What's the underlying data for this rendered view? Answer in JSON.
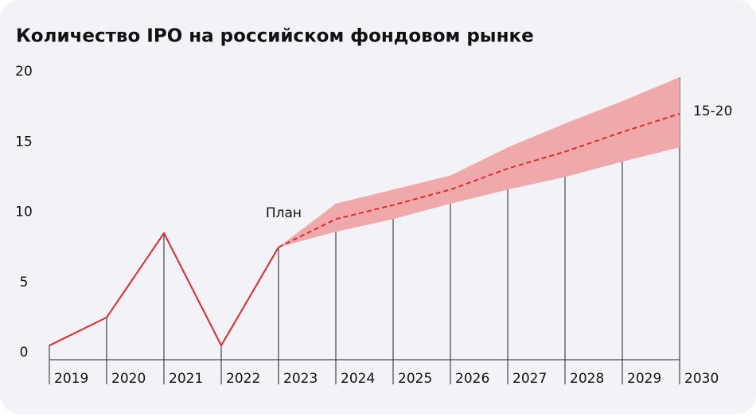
{
  "chart_data": {
    "type": "line",
    "title": "Количество IPO на российском фондовом рынке",
    "categories": [
      "2019",
      "2020",
      "2021",
      "2022",
      "2023",
      "2024",
      "2025",
      "2026",
      "2027",
      "2028",
      "2029",
      "2030"
    ],
    "series": [
      {
        "color": "#e3292b",
        "dashed": false,
        "values": [
          0.5,
          2.5,
          8.5,
          0.5,
          7.5,
          null,
          null,
          null,
          null,
          null,
          null,
          null
        ]
      },
      {
        "color": "#e3292b",
        "dashed": true,
        "values": [
          null,
          null,
          null,
          null,
          7.5,
          9.5,
          10.5,
          11.6,
          13.1,
          14.3,
          15.7,
          17
        ]
      }
    ],
    "band": {
      "color": "#f0a9aa",
      "upper": [
        null,
        null,
        null,
        null,
        7.5,
        10.6,
        11.6,
        12.6,
        14.6,
        16.3,
        17.9,
        19.6
      ],
      "lower": [
        null,
        null,
        null,
        null,
        7.5,
        8.6,
        9.5,
        10.6,
        11.6,
        12.5,
        13.6,
        14.6
      ]
    },
    "annotations": [
      "План",
      "15-20"
    ],
    "ylim": [
      0,
      20
    ],
    "yticks": [
      0,
      5,
      10,
      15,
      20
    ]
  }
}
